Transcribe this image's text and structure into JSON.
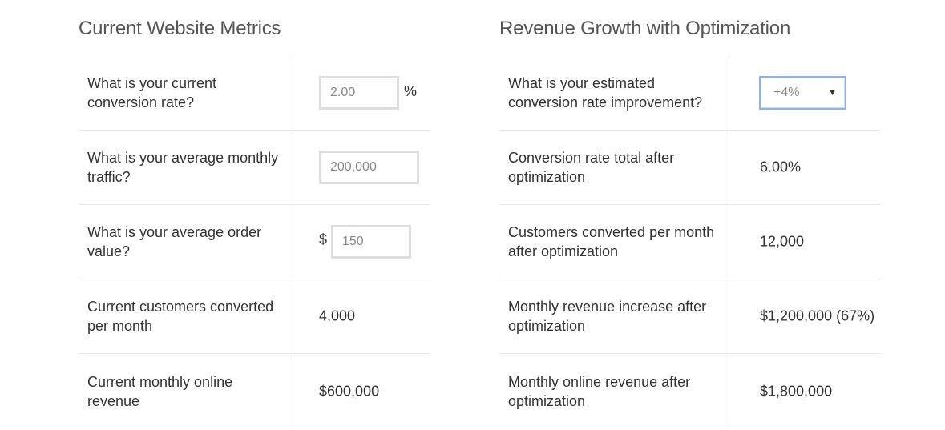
{
  "left": {
    "title": "Current Website Metrics",
    "rows": [
      {
        "label": "What is your current conversion rate?",
        "value": "2.00",
        "suffix": "%"
      },
      {
        "label": "What is your average monthly traffic?",
        "value": "200,000"
      },
      {
        "label": "What is your average order value?",
        "prefix": "$",
        "value": "150"
      },
      {
        "label": "Current customers converted per month",
        "value": "4,000"
      },
      {
        "label": "Current monthly online revenue",
        "value": "$600,000"
      }
    ]
  },
  "right": {
    "title": "Revenue Growth with Optimization",
    "rows": [
      {
        "label": "What is your estimated conversion rate improvement?",
        "select_value": "+4%",
        "chevron_icon": "dropdown-arrow-icon"
      },
      {
        "label": "Conversion rate total after optimization",
        "value": "6.00%"
      },
      {
        "label": "Customers converted per month after optimization",
        "value": "12,000"
      },
      {
        "label": "Monthly revenue increase after optimization",
        "value": "$1,200,000 (67%)"
      },
      {
        "label": "Monthly online revenue after optimization",
        "value": "$1,800,000"
      }
    ]
  },
  "colors": {
    "border": "#e6e6e6",
    "input_border": "#dddddd",
    "select_focus": "#8fb3e6",
    "text": "#333333",
    "input_text": "#888888"
  }
}
